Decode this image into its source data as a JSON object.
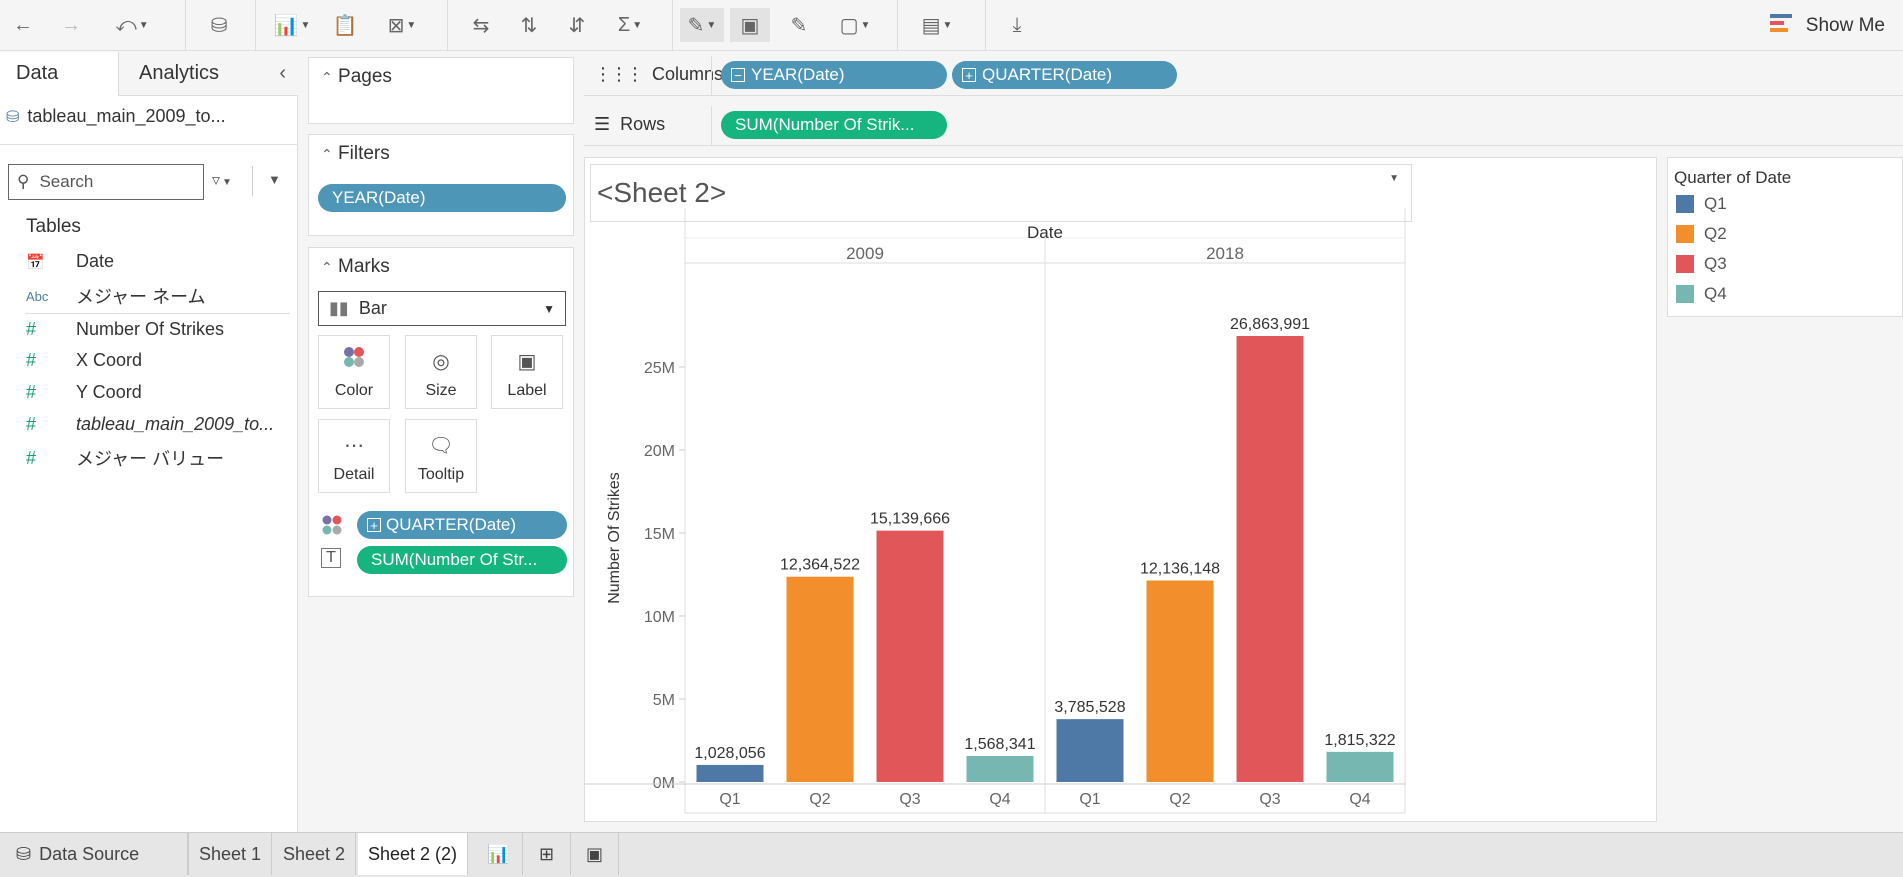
{
  "toolbar": {
    "show_me": "Show Me"
  },
  "left_panel": {
    "tab_data": "Data",
    "tab_analytics": "Analytics",
    "datasource": "tableau_main_2009_to...",
    "search_placeholder": "Search",
    "tables_heading": "Tables",
    "fields": [
      {
        "icon": "calendar-icon",
        "glyph": "📅",
        "label": "Date"
      },
      {
        "icon": "abc-icon",
        "glyph": "Abc",
        "label": "メジャー ネーム"
      },
      {
        "icon": "measure-icon",
        "glyph": "#",
        "label": "Number Of Strikes"
      },
      {
        "icon": "measure-icon",
        "glyph": "#",
        "label": "X Coord"
      },
      {
        "icon": "measure-icon",
        "glyph": "#",
        "label": "Y Coord"
      },
      {
        "icon": "measure-icon",
        "glyph": "#",
        "label": "tableau_main_2009_to..."
      },
      {
        "icon": "measure-icon",
        "glyph": "#",
        "label": "メジャー バリュー"
      }
    ]
  },
  "pages_card": {
    "title": "Pages"
  },
  "filters_card": {
    "title": "Filters",
    "pill": "YEAR(Date)"
  },
  "marks_card": {
    "title": "Marks",
    "type": "Bar",
    "buttons": [
      "Color",
      "Size",
      "Label",
      "Detail",
      "Tooltip"
    ],
    "pill_color": "QUARTER(Date)",
    "pill_label": "SUM(Number Of Str..."
  },
  "shelves": {
    "columns_label": "Columns",
    "columns_pills": [
      "YEAR(Date)",
      "QUARTER(Date)"
    ],
    "rows_label": "Rows",
    "rows_pills": [
      "SUM(Number Of Strik..."
    ]
  },
  "sheet_title": "<Sheet 2>",
  "legend": {
    "title": "Quarter of Date",
    "items": [
      {
        "label": "Q1",
        "color": "#4e79a7"
      },
      {
        "label": "Q2",
        "color": "#f28e2b"
      },
      {
        "label": "Q3",
        "color": "#e15759"
      },
      {
        "label": "Q4",
        "color": "#76b7b2"
      }
    ]
  },
  "chart_data": {
    "type": "bar",
    "title": "Date",
    "ylabel": "Number Of Strikes",
    "ylim": [
      0,
      30000000
    ],
    "yticks": [
      "0M",
      "5M",
      "10M",
      "15M",
      "20M",
      "25M"
    ],
    "groups": [
      "2009",
      "2018"
    ],
    "categories": [
      "Q1",
      "Q2",
      "Q3",
      "Q4"
    ],
    "colors": [
      "#4e79a7",
      "#f28e2b",
      "#e15759",
      "#76b7b2"
    ],
    "series": [
      {
        "group": "2009",
        "values": [
          1028056,
          12364522,
          15139666,
          1568341
        ],
        "labels": [
          "1,028,056",
          "12,364,522",
          "15,139,666",
          "1,568,341"
        ]
      },
      {
        "group": "2018",
        "values": [
          3785528,
          12136148,
          26863991,
          1815322
        ],
        "labels": [
          "3,785,528",
          "12,136,148",
          "26,863,991",
          "1,815,322"
        ]
      }
    ]
  },
  "bottom_tabs": {
    "data_source": "Data Source",
    "sheets": [
      "Sheet 1",
      "Sheet 2",
      "Sheet 2 (2)"
    ]
  }
}
